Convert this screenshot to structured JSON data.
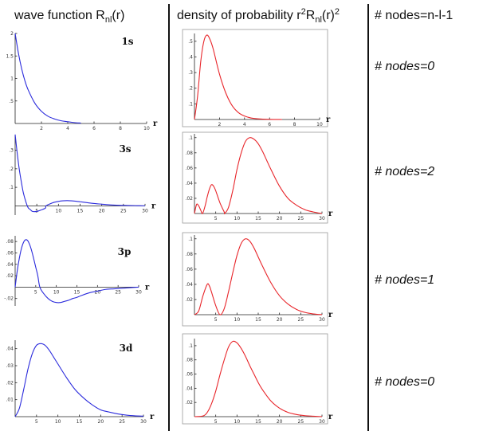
{
  "headers": {
    "wave_main": "wave function R",
    "wave_sub": "nl",
    "wave_tail": "(r)",
    "dens_main": "density of probability r",
    "dens_sup1": "2",
    "dens_R": "R",
    "dens_sub": "nl",
    "dens_tail": "(r)",
    "dens_sup2": "2",
    "nodes_rule": "# nodes=n-l-1"
  },
  "nodes_notes": [
    "# nodes=0",
    "# nodes=2",
    "# nodes=1",
    "# nodes=0"
  ],
  "colors": {
    "wave": "#2b2bdc",
    "density": "#e8262b"
  },
  "chart_data": [
    {
      "type": "line",
      "panel": "wave",
      "title": "1s",
      "xlabel": "r",
      "xlim": [
        0,
        10
      ],
      "ylim": [
        0,
        2
      ],
      "xticks": [
        2,
        4,
        6,
        8,
        10
      ],
      "yticks": [
        0.5,
        1,
        1.5,
        2
      ],
      "series": [
        {
          "x": [
            0,
            0.25,
            0.5,
            0.75,
            1,
            1.5,
            2,
            2.5,
            3,
            3.5,
            4,
            4.5,
            5
          ],
          "y": [
            2,
            1.56,
            1.21,
            0.94,
            0.74,
            0.45,
            0.27,
            0.16,
            0.1,
            0.06,
            0.04,
            0.02,
            0.01
          ]
        }
      ]
    },
    {
      "type": "line",
      "panel": "wave",
      "title": "3s",
      "xlabel": "r",
      "xlim": [
        0,
        30
      ],
      "ylim": [
        -0.05,
        0.38
      ],
      "xticks": [
        5,
        10,
        15,
        20,
        25,
        30
      ],
      "yticks": [
        0.1,
        0.2,
        0.3
      ],
      "series": [
        {
          "x": [
            0,
            0.5,
            1,
            1.5,
            1.9,
            2.5,
            3,
            3.5,
            4,
            5,
            6,
            7,
            7.1,
            8,
            9,
            10,
            11,
            12,
            13,
            14,
            15,
            16,
            18,
            20,
            22,
            24,
            26,
            28,
            30
          ],
          "y": [
            0.385,
            0.28,
            0.19,
            0.12,
            0.07,
            0.02,
            -0.01,
            -0.02,
            -0.03,
            -0.03,
            -0.022,
            -0.012,
            0,
            0.01,
            0.019,
            0.024,
            0.027,
            0.028,
            0.027,
            0.025,
            0.022,
            0.019,
            0.013,
            0.009,
            0.005,
            0.003,
            0.002,
            0.001,
            0
          ]
        }
      ]
    },
    {
      "type": "line",
      "panel": "wave",
      "title": "3p",
      "xlabel": "r",
      "xlim": [
        0,
        30
      ],
      "ylim": [
        -0.033,
        0.09
      ],
      "xticks": [
        5,
        10,
        15,
        20,
        25,
        30
      ],
      "yticks": [
        -0.02,
        0.02,
        0.04,
        0.06,
        0.08
      ],
      "series": [
        {
          "x": [
            0,
            0.5,
            1,
            1.5,
            2,
            2.5,
            3,
            3.5,
            4,
            4.5,
            5,
            5.5,
            6,
            7,
            8,
            9,
            10,
            11,
            12,
            13,
            14,
            15,
            16,
            18,
            20,
            22,
            24,
            26,
            28,
            30
          ],
          "y": [
            0,
            0.028,
            0.05,
            0.067,
            0.078,
            0.083,
            0.082,
            0.075,
            0.064,
            0.05,
            0.035,
            0.02,
            0,
            -0.012,
            -0.02,
            -0.025,
            -0.027,
            -0.027,
            -0.025,
            -0.023,
            -0.02,
            -0.018,
            -0.015,
            -0.01,
            -0.007,
            -0.004,
            -0.003,
            -0.002,
            -0.001,
            0
          ]
        }
      ]
    },
    {
      "type": "line",
      "panel": "wave",
      "title": "3d",
      "xlabel": "r",
      "xlim": [
        0,
        30
      ],
      "ylim": [
        0,
        0.045
      ],
      "xticks": [
        5,
        10,
        15,
        20,
        25,
        30
      ],
      "yticks": [
        0.01,
        0.02,
        0.03,
        0.04
      ],
      "series": [
        {
          "x": [
            0,
            1,
            2,
            3,
            4,
            5,
            6,
            7,
            8,
            9,
            10,
            12,
            14,
            16,
            18,
            20,
            22,
            24,
            26,
            28,
            30
          ],
          "y": [
            0,
            0.005,
            0.016,
            0.028,
            0.037,
            0.042,
            0.043,
            0.042,
            0.039,
            0.035,
            0.031,
            0.023,
            0.016,
            0.011,
            0.007,
            0.004,
            0.0027,
            0.0016,
            0.0009,
            0.0005,
            0.0003
          ]
        }
      ]
    },
    {
      "type": "line",
      "panel": "density",
      "xlabel": "r",
      "xlim": [
        0,
        10
      ],
      "ylim": [
        0,
        0.55
      ],
      "xticks": [
        2,
        4,
        6,
        8,
        10
      ],
      "yticks": [
        0.1,
        0.2,
        0.3,
        0.4,
        0.5
      ],
      "series": [
        {
          "x": [
            0,
            0.25,
            0.5,
            0.75,
            1,
            1.25,
            1.5,
            2,
            2.5,
            3,
            3.5,
            4,
            4.5,
            5,
            6,
            7
          ],
          "y": [
            0,
            0.15,
            0.37,
            0.5,
            0.54,
            0.51,
            0.45,
            0.29,
            0.17,
            0.09,
            0.045,
            0.022,
            0.01,
            0.005,
            0.001,
            0
          ]
        }
      ]
    },
    {
      "type": "line",
      "panel": "density",
      "xlabel": "r",
      "xlim": [
        0,
        30
      ],
      "ylim": [
        0,
        0.105
      ],
      "xticks": [
        5,
        10,
        15,
        20,
        25,
        30
      ],
      "yticks": [
        0.02,
        0.04,
        0.06,
        0.08,
        0.1
      ],
      "series": [
        {
          "x": [
            0,
            0.5,
            1,
            1.5,
            1.9,
            2.5,
            3,
            3.5,
            4,
            4.5,
            5,
            6,
            7,
            7.1,
            8,
            9,
            10,
            11,
            12,
            13,
            14,
            15,
            16,
            17,
            18,
            20,
            22,
            24,
            26,
            28,
            30
          ],
          "y": [
            0,
            0.012,
            0.01,
            0.004,
            0,
            0.01,
            0.022,
            0.032,
            0.038,
            0.036,
            0.03,
            0.014,
            0.002,
            0,
            0.008,
            0.03,
            0.058,
            0.08,
            0.095,
            0.1,
            0.098,
            0.092,
            0.082,
            0.07,
            0.058,
            0.036,
            0.02,
            0.011,
            0.005,
            0.002,
            0
          ]
        }
      ]
    },
    {
      "type": "line",
      "panel": "density",
      "xlabel": "r",
      "xlim": [
        0,
        30
      ],
      "ylim": [
        0,
        0.105
      ],
      "xticks": [
        5,
        10,
        15,
        20,
        25,
        30
      ],
      "yticks": [
        0.02,
        0.04,
        0.06,
        0.08,
        0.1
      ],
      "series": [
        {
          "x": [
            0,
            1,
            2,
            3,
            3.5,
            4,
            5,
            6,
            7,
            8,
            9,
            10,
            11,
            12,
            13,
            14,
            15,
            16,
            18,
            20,
            22,
            24,
            26,
            28,
            30
          ],
          "y": [
            0,
            0.005,
            0.025,
            0.04,
            0.038,
            0.03,
            0.012,
            0,
            0.008,
            0.03,
            0.055,
            0.078,
            0.094,
            0.1,
            0.097,
            0.088,
            0.076,
            0.064,
            0.042,
            0.025,
            0.014,
            0.007,
            0.003,
            0.001,
            0
          ]
        }
      ]
    },
    {
      "type": "line",
      "panel": "density",
      "xlabel": "r",
      "xlim": [
        0,
        30
      ],
      "ylim": [
        0,
        0.11
      ],
      "xticks": [
        5,
        10,
        15,
        20,
        25,
        30
      ],
      "yticks": [
        0.02,
        0.04,
        0.06,
        0.08,
        0.1
      ],
      "series": [
        {
          "x": [
            0,
            2,
            3,
            4,
            5,
            6,
            7,
            8,
            9,
            10,
            11,
            12,
            13,
            14,
            15,
            16,
            18,
            20,
            22,
            24,
            26,
            28,
            30
          ],
          "y": [
            0,
            0.001,
            0.006,
            0.018,
            0.036,
            0.059,
            0.08,
            0.098,
            0.106,
            0.104,
            0.096,
            0.085,
            0.072,
            0.06,
            0.048,
            0.038,
            0.022,
            0.012,
            0.006,
            0.003,
            0.0014,
            0.0006,
            0
          ]
        }
      ]
    }
  ]
}
